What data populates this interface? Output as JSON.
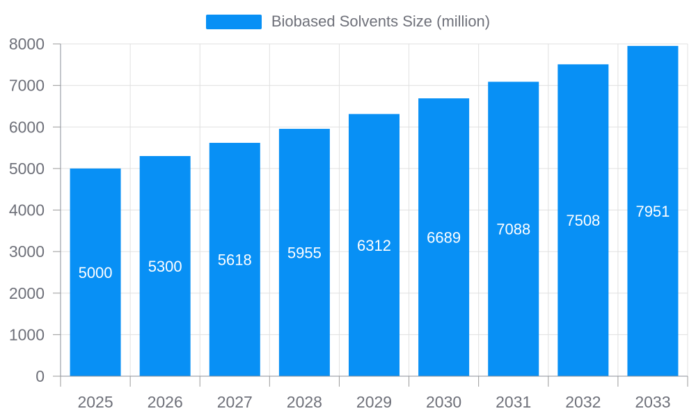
{
  "legend": {
    "label": "Biobased Solvents Size (million)"
  },
  "colors": {
    "bar": "#0890F5",
    "bar_label": "#FFFFFF",
    "axis_label": "#6E7079",
    "legend_text": "#6E7079",
    "axis_line": "#8A8F99",
    "tick_line": "#999999",
    "grid_line": "#E0E0E0",
    "background": "#FFFFFF"
  },
  "chart_data": {
    "type": "bar",
    "title": "",
    "categories": [
      "2025",
      "2026",
      "2027",
      "2028",
      "2029",
      "2030",
      "2031",
      "2032",
      "2033"
    ],
    "series": [
      {
        "name": "Biobased Solvents Size (million)",
        "values": [
          5000,
          5300,
          5618,
          5955,
          6312,
          6689,
          7088,
          7508,
          7951
        ]
      }
    ],
    "xlabel": "",
    "ylabel": "",
    "ylim": [
      0,
      8000
    ],
    "y_ticks": [
      0,
      1000,
      2000,
      3000,
      4000,
      5000,
      6000,
      7000,
      8000
    ],
    "grid": true,
    "legend_position": "top-center",
    "bar_label_position": "inside-middle"
  }
}
